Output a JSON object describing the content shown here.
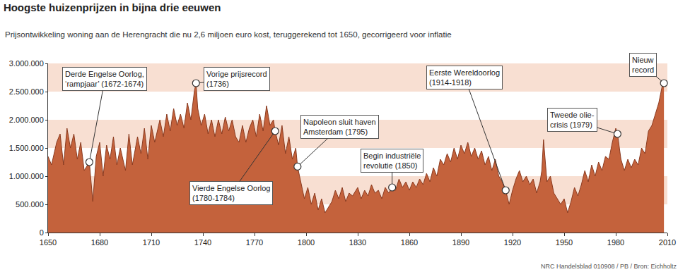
{
  "chart_data": {
    "type": "area",
    "title": "Hoogste huizenprijzen in bijna drie eeuwen",
    "subtitle": "Prijsontwikkeling woning aan de Herengracht die nu 2,6 miljoen euro kost, teruggerekend tot 1650, gecorrigeerd voor inflatie",
    "source": "NRC Handelsblad 010908 / PB / Bron: Eichholtz",
    "color": "#c4623c",
    "grid": true,
    "xlim": [
      1650,
      2010
    ],
    "xticks": [
      1650,
      1680,
      1710,
      1740,
      1770,
      1800,
      1830,
      1860,
      1890,
      1920,
      1950,
      1980,
      2010
    ],
    "ylim": [
      0,
      3000000
    ],
    "yticks": [
      0,
      {
        "value": 500000,
        "label": "500.000"
      },
      {
        "value": 1000000,
        "label": "1.000.000"
      },
      {
        "value": 1500000,
        "label": "1.500.000"
      },
      {
        "value": 2000000,
        "label": "2.000.000"
      },
      {
        "value": 2500000,
        "label": "2.500.000"
      },
      {
        "value": 3000000,
        "label": "3.000.000"
      }
    ],
    "x": [
      1650,
      1652,
      1655,
      1657,
      1659,
      1661,
      1663,
      1665,
      1667,
      1669,
      1671,
      1674,
      1676,
      1678,
      1680,
      1682,
      1684,
      1686,
      1688,
      1690,
      1692,
      1695,
      1697,
      1699,
      1702,
      1704,
      1706,
      1708,
      1710,
      1712,
      1715,
      1717,
      1719,
      1721,
      1723,
      1725,
      1727,
      1729,
      1731,
      1733,
      1735,
      1736,
      1737,
      1739,
      1741,
      1743,
      1745,
      1747,
      1749,
      1751,
      1753,
      1755,
      1757,
      1759,
      1761,
      1763,
      1765,
      1767,
      1769,
      1771,
      1773,
      1775,
      1777,
      1779,
      1781,
      1782,
      1784,
      1786,
      1788,
      1790,
      1792,
      1794,
      1795,
      1797,
      1799,
      1801,
      1803,
      1805,
      1807,
      1809,
      1811,
      1813,
      1815,
      1817,
      1819,
      1821,
      1823,
      1825,
      1827,
      1830,
      1832,
      1834,
      1836,
      1838,
      1840,
      1842,
      1844,
      1846,
      1848,
      1850,
      1852,
      1854,
      1856,
      1858,
      1860,
      1862,
      1864,
      1866,
      1868,
      1870,
      1872,
      1874,
      1876,
      1878,
      1880,
      1882,
      1884,
      1886,
      1888,
      1890,
      1892,
      1894,
      1896,
      1898,
      1900,
      1902,
      1904,
      1906,
      1908,
      1910,
      1912,
      1914,
      1916,
      1918,
      1920,
      1922,
      1924,
      1926,
      1928,
      1930,
      1932,
      1934,
      1936,
      1937,
      1938,
      1940,
      1942,
      1944,
      1946,
      1948,
      1950,
      1952,
      1954,
      1956,
      1958,
      1960,
      1962,
      1964,
      1966,
      1968,
      1970,
      1972,
      1974,
      1976,
      1978,
      1980,
      1981,
      1983,
      1985,
      1987,
      1989,
      1991,
      1993,
      1995,
      1997,
      1999,
      2001,
      2003,
      2005,
      2007,
      2008
    ],
    "values": [
      1350000,
      1200000,
      1600000,
      1750000,
      1200000,
      1850000,
      1500000,
      1750000,
      1300000,
      1600000,
      1100000,
      1250000,
      550000,
      1350000,
      1600000,
      1000000,
      1550000,
      1300000,
      1700000,
      1200000,
      1500000,
      1100000,
      1750000,
      1200000,
      1700000,
      1400000,
      1850000,
      1300000,
      1900000,
      1600000,
      2000000,
      1700000,
      2100000,
      1800000,
      2200000,
      1900000,
      2100000,
      1850000,
      2300000,
      2000000,
      2500000,
      2650000,
      2200000,
      1900000,
      2100000,
      1750000,
      2000000,
      1700000,
      2000000,
      1750000,
      2050000,
      1800000,
      2000000,
      1700000,
      1600000,
      1900000,
      1600000,
      1850000,
      2000000,
      1700000,
      2100000,
      1800000,
      2250000,
      1900000,
      2000000,
      1800000,
      1550000,
      1900000,
      1400000,
      1700000,
      1300000,
      1500000,
      1170000,
      900000,
      600000,
      800000,
      500000,
      700000,
      400000,
      600000,
      350000,
      450000,
      550000,
      750000,
      600000,
      800000,
      550000,
      700000,
      650000,
      800000,
      600000,
      750000,
      650000,
      850000,
      700000,
      750000,
      600000,
      800000,
      700000,
      800000,
      750000,
      950000,
      800000,
      900000,
      750000,
      900000,
      800000,
      950000,
      850000,
      1050000,
      900000,
      1150000,
      1000000,
      1300000,
      1200000,
      1400000,
      1250000,
      1500000,
      1300000,
      1550000,
      1400000,
      1600000,
      1350000,
      1500000,
      1300000,
      1450000,
      1200000,
      1350000,
      1100000,
      1300000,
      1000000,
      900000,
      750000,
      500000,
      750000,
      950000,
      1100000,
      900000,
      1000000,
      850000,
      950000,
      700000,
      900000,
      1100000,
      1650000,
      900000,
      1000000,
      700000,
      600000,
      500000,
      600000,
      350000,
      550000,
      800000,
      650000,
      850000,
      1100000,
      900000,
      1200000,
      1000000,
      1250000,
      1100000,
      1350000,
      1300000,
      1600000,
      1850000,
      1750000,
      1300000,
      1100000,
      1300000,
      1150000,
      1300000,
      1200000,
      1500000,
      1400000,
      1800000,
      1900000,
      2100000,
      2300000,
      2600000,
      2650000
    ],
    "annotations": [
      {
        "lines": [
          "Derde Engelse Oorlog,",
          "‘rampjaar’ (1672-1674)"
        ],
        "x": 1674,
        "y": 1250000
      },
      {
        "lines": [
          "Vorige prijsrecord",
          "(1736)"
        ],
        "x": 1736,
        "y": 2650000
      },
      {
        "lines": [
          "Vierde Engelse Oorlog",
          "(1780-1784)"
        ],
        "x": 1782,
        "y": 1800000
      },
      {
        "lines": [
          "Napoleon sluit haven",
          "Amsterdam (1795)"
        ],
        "x": 1795,
        "y": 1170000
      },
      {
        "lines": [
          "Begin industriële",
          "revolutie (1850)"
        ],
        "x": 1850,
        "y": 800000
      },
      {
        "lines": [
          "Eerste Wereldoorlog",
          "(1914-1918)"
        ],
        "x": 1916,
        "y": 750000
      },
      {
        "lines": [
          "Tweede olie-",
          "crisis (1979)"
        ],
        "x": 1981,
        "y": 1750000
      },
      {
        "lines": [
          "Nieuw",
          "record"
        ],
        "x": 2008,
        "y": 2650000
      }
    ]
  }
}
